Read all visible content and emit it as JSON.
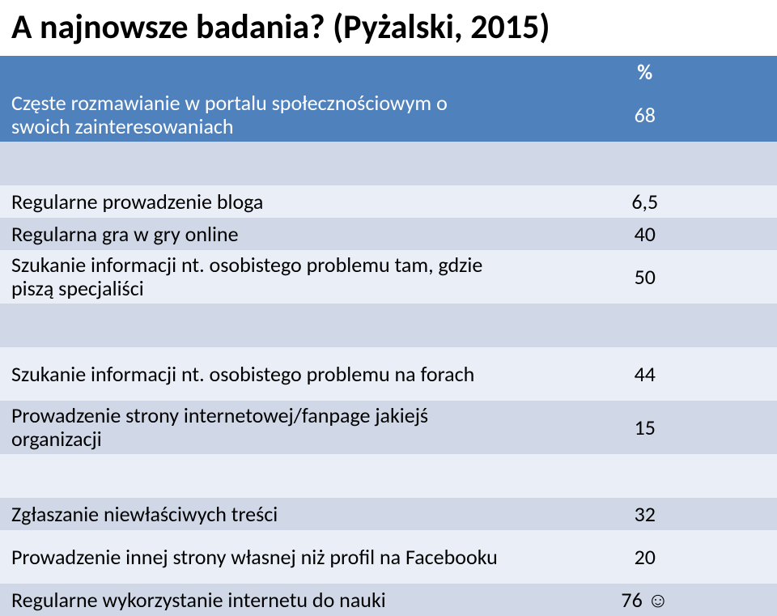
{
  "title": "A najnowsze badania? (Pyżalski, 2015)",
  "header": {
    "left": "",
    "right": "%"
  },
  "rows": [
    {
      "left": "Częste rozmawianie w portalu społecznościowym o swoich zainteresowaniach",
      "right": "68",
      "group": "first",
      "h": "h-med"
    },
    {
      "left": "",
      "right": "",
      "group": "dark",
      "h": "h-section"
    },
    {
      "left": "Regularne prowadzenie bloga",
      "right": "6,5",
      "group": "light",
      "h": "h-small"
    },
    {
      "left": "Regularna gra w gry online",
      "right": "40",
      "group": "dark",
      "h": "h-small"
    },
    {
      "left": "Szukanie informacji nt. osobistego problemu tam, gdzie piszą specjaliści",
      "right": "50",
      "group": "light",
      "h": "h-med"
    },
    {
      "left": "",
      "right": "",
      "group": "dark",
      "h": "h-section"
    },
    {
      "left": "Szukanie informacji nt. osobistego problemu na forach",
      "right": "44",
      "group": "light",
      "h": "h-med"
    },
    {
      "left": "Prowadzenie strony internetowej/fanpage jakiejś organizacji",
      "right": "15",
      "group": "dark",
      "h": "h-med"
    },
    {
      "left": "",
      "right": "",
      "group": "light",
      "h": "h-section"
    },
    {
      "left": "Zgłaszanie niewłaściwych treści",
      "right": "32",
      "group": "dark",
      "h": "h-small"
    },
    {
      "left": "Prowadzenie innej strony własnej niż profil na Facebooku",
      "right": "20",
      "group": "light",
      "h": "h-med"
    },
    {
      "left": "Regularne wykorzystanie internetu do nauki",
      "right": "76 ☺",
      "group": "dark",
      "h": "h-small"
    }
  ],
  "colors": {
    "header_bg": "#4f81bd",
    "header_fg": "#ffffff",
    "band_light": "#e9eef7",
    "band_dark": "#d0d8e8",
    "text": "#000000"
  }
}
